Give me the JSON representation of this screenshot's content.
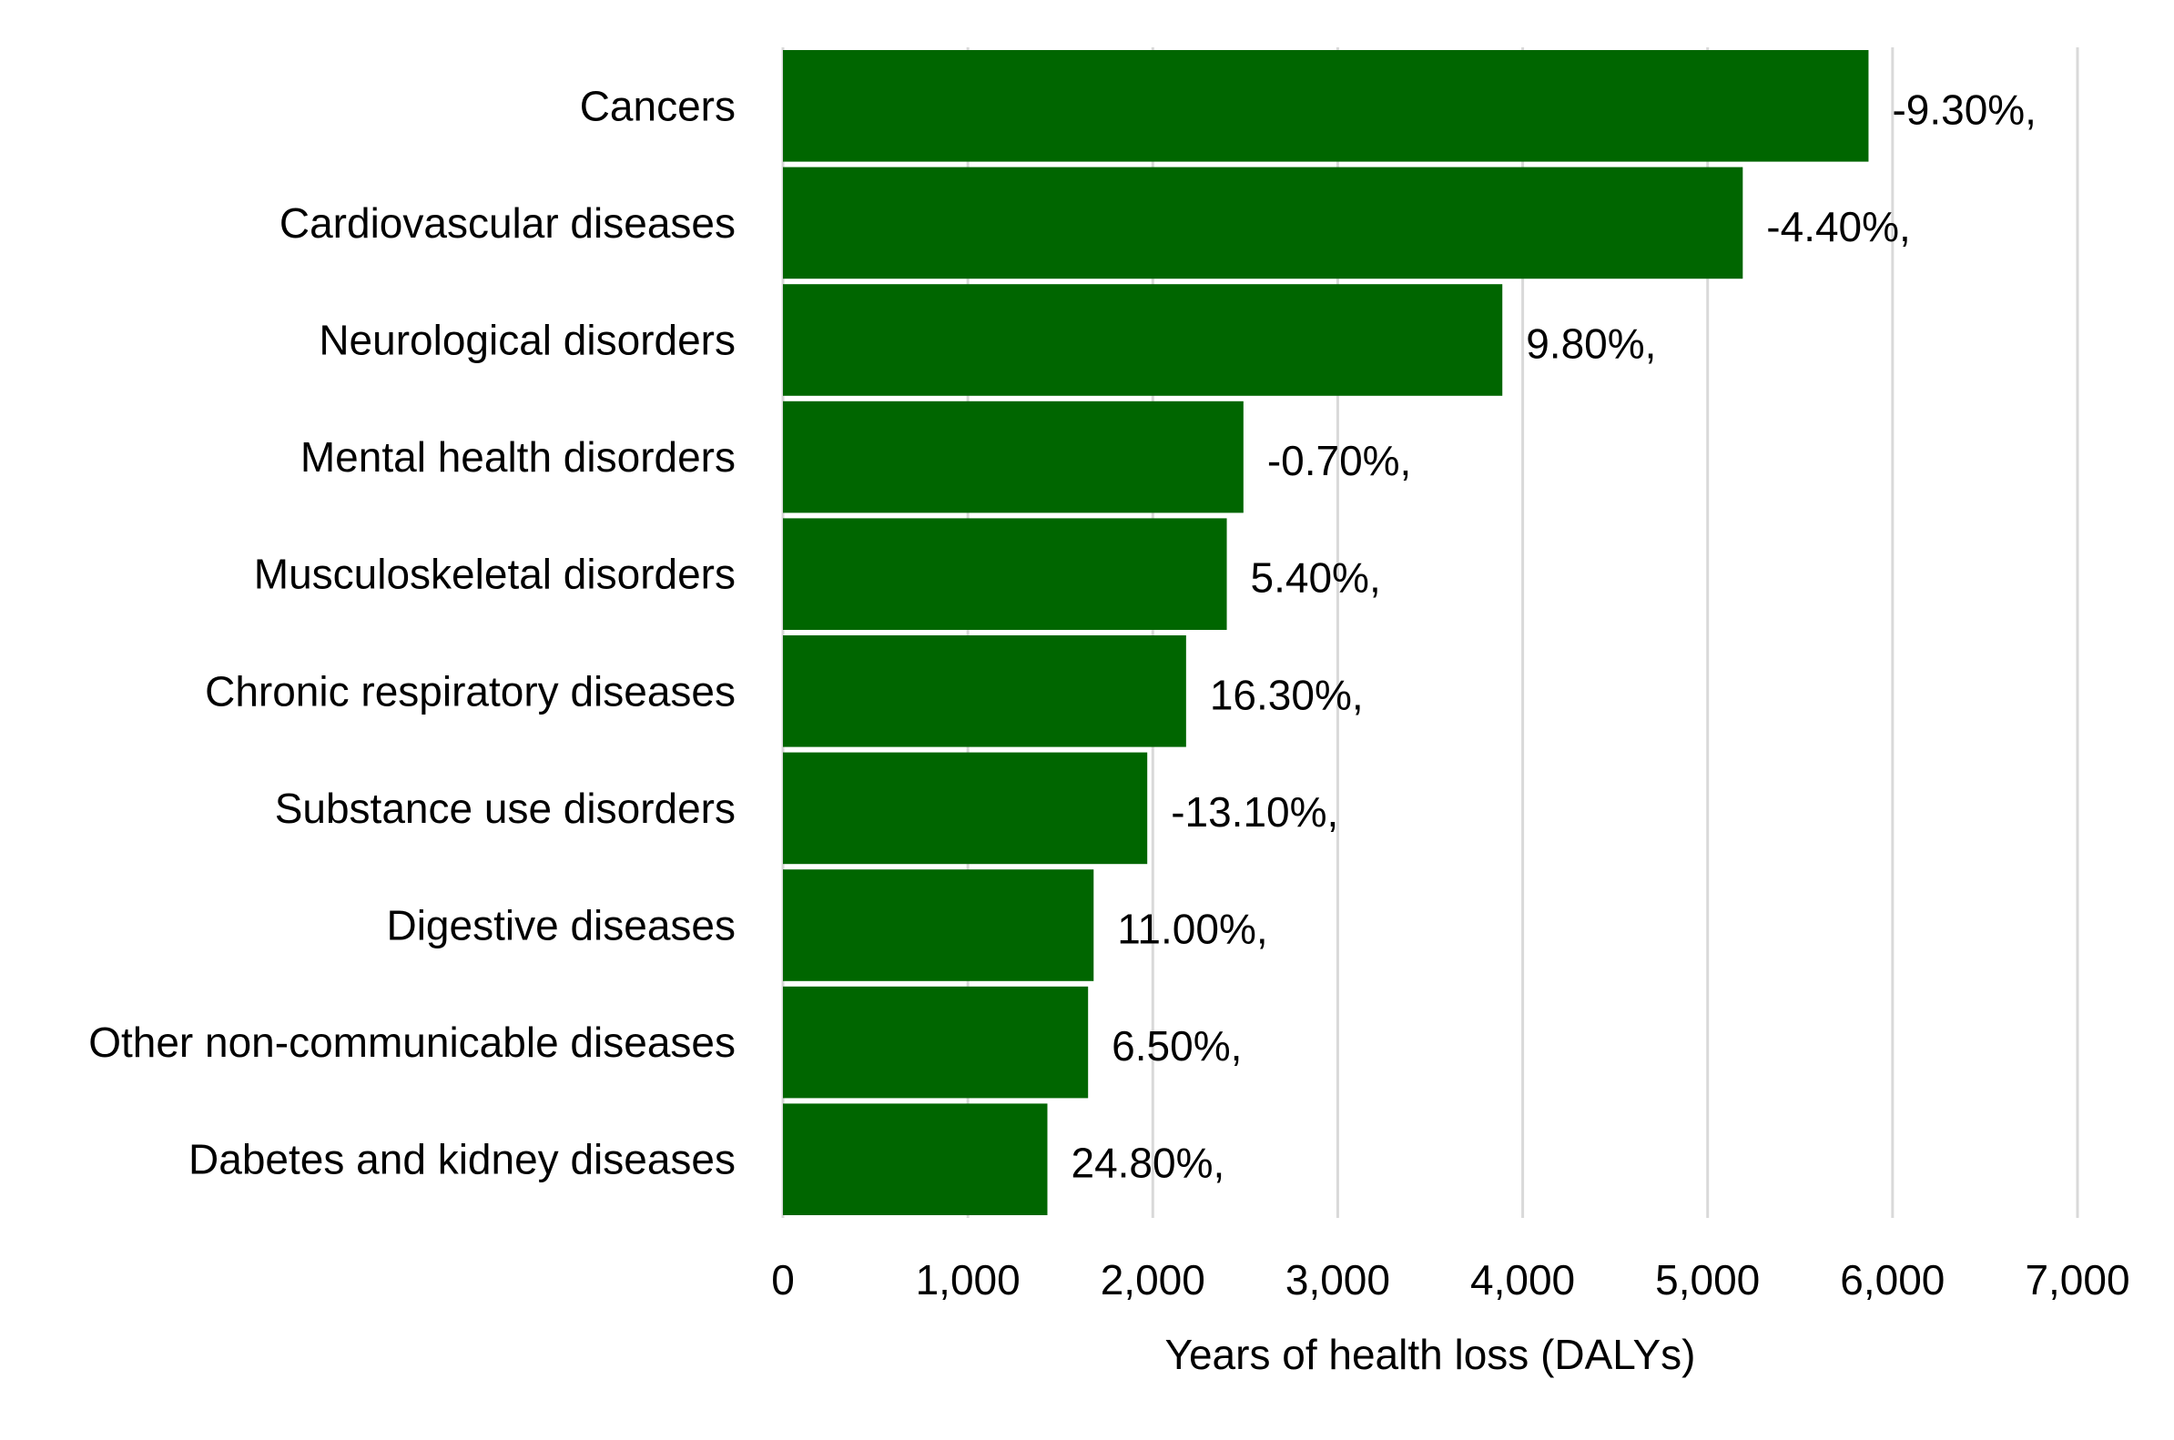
{
  "chart_data": {
    "type": "bar",
    "orientation": "horizontal",
    "categories": [
      "Cancers",
      "Cardiovascular diseases",
      "Neurological disorders",
      "Mental health disorders",
      "Musculoskeletal disorders",
      "Chronic respiratory diseases",
      "Substance use disorders",
      "Digestive diseases",
      "Other non-communicable diseases",
      "Dabetes and kidney diseases"
    ],
    "values": [
      5870,
      5190,
      3890,
      2490,
      2400,
      2180,
      1970,
      1680,
      1650,
      1430
    ],
    "data_labels": [
      "-9.30%,",
      "-4.40%,",
      "9.80%,",
      "-0.70%,",
      "5.40%,",
      "16.30%,",
      "-13.10%,",
      "11.00%,",
      "6.50%,",
      "24.80%,"
    ],
    "xlabel": "Years of health loss (DALYs)",
    "ylabel": "",
    "xlim": [
      0,
      7000
    ],
    "x_ticks": [
      0,
      1000,
      2000,
      3000,
      4000,
      5000,
      6000,
      7000
    ],
    "x_tick_labels": [
      "0",
      "1,000",
      "2,000",
      "3,000",
      "4,000",
      "5,000",
      "6,000",
      "7,000"
    ],
    "grid": "vertical",
    "legend": "none",
    "bar_color": "#006600",
    "grid_color": "#d9d9d9"
  }
}
